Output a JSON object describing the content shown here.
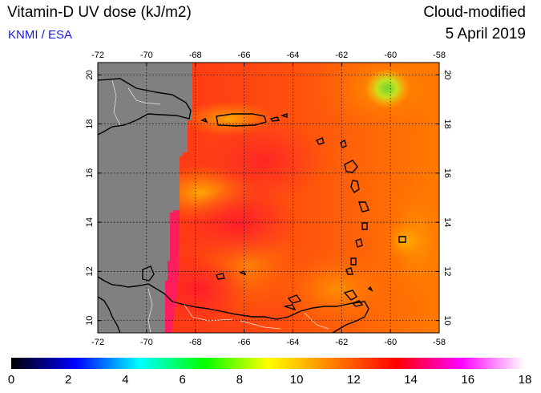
{
  "header": {
    "title": "Vitamin-D UV dose (kJ/m2)",
    "credit": "KNMI / ESA",
    "product": "Cloud-modified",
    "date": "5 April 2019"
  },
  "map": {
    "region": "Caribbean Sea / Lesser Antilles",
    "lon_range": [
      -72,
      -58
    ],
    "lat_range": [
      9.5,
      20.5
    ],
    "lon_ticks": [
      "-72",
      "-70",
      "-68",
      "-66",
      "-64",
      "-62",
      "-60",
      "-58"
    ],
    "lat_ticks": [
      "10",
      "12",
      "14",
      "16",
      "18",
      "20"
    ],
    "gridlines": true,
    "no_data_color": "#808080",
    "coastline_color": "#000000",
    "border_color": "#ffffff"
  },
  "colorbar": {
    "min": 0,
    "max": 18,
    "labels": [
      "0",
      "2",
      "4",
      "6",
      "8",
      "10",
      "12",
      "14",
      "16",
      "18"
    ],
    "gradient": [
      "#000000",
      "#0000ff",
      "#00ffff",
      "#00ff00",
      "#ffff00",
      "#ff8000",
      "#ff0000",
      "#ff00ff",
      "#ffffff"
    ]
  }
}
